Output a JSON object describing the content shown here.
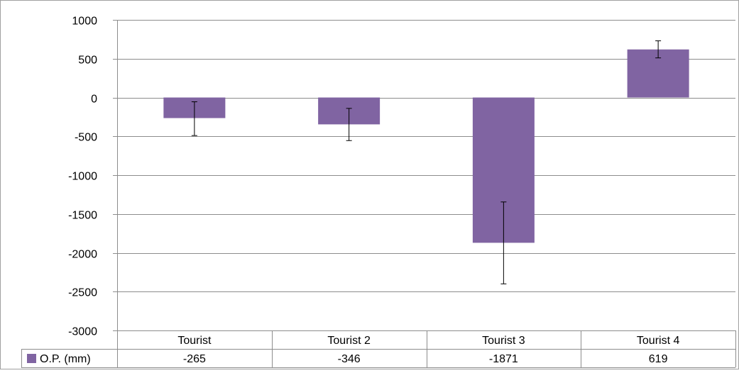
{
  "chart_data": {
    "type": "bar",
    "title": "",
    "xlabel": "",
    "ylabel": "",
    "categories": [
      "Tourist",
      "Tourist 2",
      "Tourist 3",
      "Tourist 4"
    ],
    "series": [
      {
        "name": "O.P. (mm)",
        "values": [
          -265,
          -346,
          -1871,
          619
        ],
        "error_low": [
          -490,
          -555,
          -2400,
          510
        ],
        "error_high": [
          -55,
          -140,
          -1345,
          730
        ]
      }
    ],
    "yticks": [
      1000,
      500,
      0,
      -500,
      -1000,
      -1500,
      -2000,
      -2500,
      -3000
    ],
    "ylim": [
      -3000,
      1000
    ],
    "grid": true,
    "legend": "data table",
    "bar_color": "#8064a2"
  }
}
